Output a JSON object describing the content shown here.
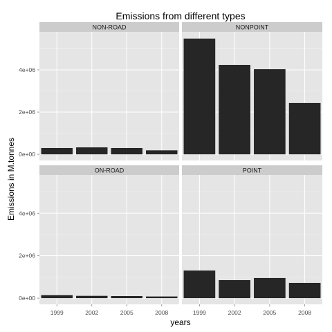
{
  "chart_data": {
    "type": "bar",
    "title": "Emissions from different types",
    "xlabel": "years",
    "ylabel": "Emissions in M.tonnes",
    "categories": [
      "1999",
      "2002",
      "2005",
      "2008"
    ],
    "ylim": [
      0,
      5800000
    ],
    "yticks": [
      0,
      2000000,
      4000000
    ],
    "ytick_labels": [
      "0e+00",
      "2e+06",
      "4e+06"
    ],
    "grid": true,
    "facet_layout": "2x2",
    "bar_color": "#262626",
    "panel_background": "#e5e5e5",
    "strip_background": "#cccccc",
    "gridline_color": "#ffffff",
    "series": [
      {
        "name": "NON-ROAD",
        "values": [
          300000,
          330000,
          300000,
          190000
        ]
      },
      {
        "name": "NONPOINT",
        "values": [
          5480000,
          4230000,
          4030000,
          2430000
        ]
      },
      {
        "name": "ON-ROAD",
        "values": [
          140000,
          110000,
          100000,
          80000
        ]
      },
      {
        "name": "POINT",
        "values": [
          1300000,
          850000,
          950000,
          720000
        ]
      }
    ]
  }
}
